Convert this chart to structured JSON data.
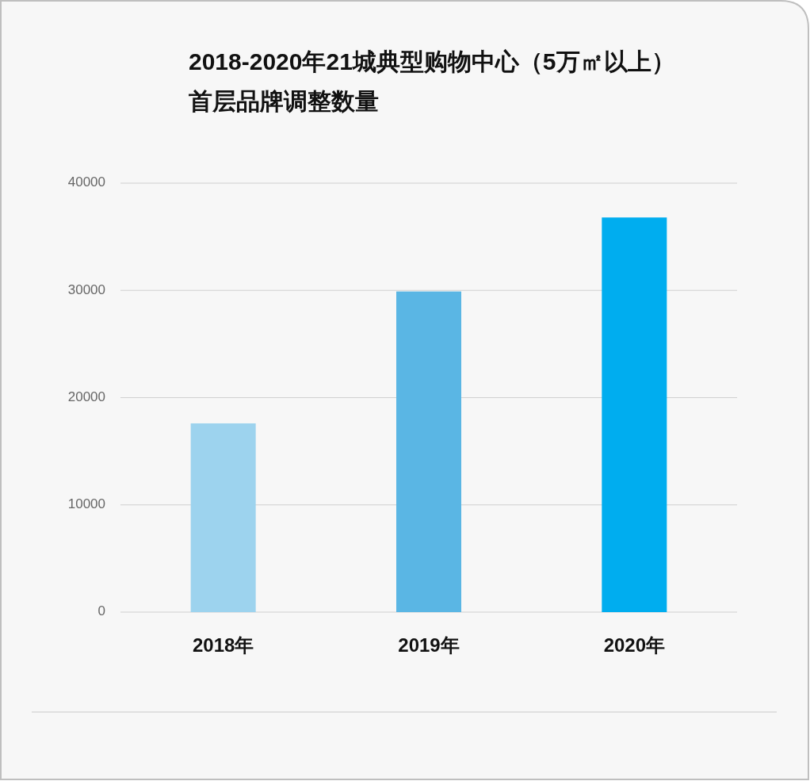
{
  "chart_data": {
    "type": "bar",
    "title": "2018-2020年21城典型购物中心（5万㎡以上）首层品牌调整数量",
    "categories": [
      "2018年",
      "2019年",
      "2020年"
    ],
    "values": [
      17600,
      29900,
      36800
    ],
    "colors": [
      "#9dd3ee",
      "#5ab6e4",
      "#00adef"
    ],
    "ylim": [
      0,
      40000
    ],
    "yticks": [
      0,
      10000,
      20000,
      30000,
      40000
    ],
    "grid": "y"
  }
}
